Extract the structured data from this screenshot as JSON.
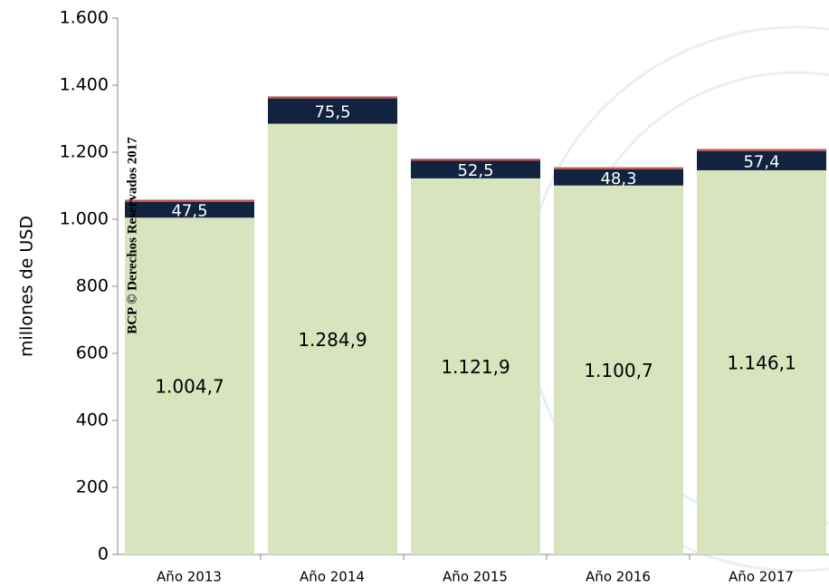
{
  "chart_data": {
    "type": "stacked_bar",
    "categories": [
      "Año 2013",
      "Año 2014",
      "Año 2015",
      "Año 2016",
      "Año 2017"
    ],
    "series": [
      {
        "color": "#d7e4bd",
        "values": [
          1004.7,
          1284.9,
          1121.9,
          1100.7,
          1146.1
        ],
        "value_labels": [
          "1.004,7",
          "1.284,9",
          "1.121,9",
          "1.100,7",
          "1.146,1"
        ]
      },
      {
        "color": "#12233f",
        "values": [
          47.5,
          75.5,
          52.5,
          48.3,
          57.4
        ],
        "value_labels": [
          "47,5",
          "75,5",
          "52,5",
          "48,3",
          "57,4"
        ]
      },
      {
        "color": "#c0504d",
        "values": [
          6,
          6,
          6,
          6,
          6
        ]
      }
    ],
    "y_label": "millones de  USD",
    "watermark": "BCP © Derechos Reservados 2017",
    "ylim": [
      0,
      1600
    ],
    "yticks": [
      0,
      200,
      400,
      600,
      800,
      {
        "value": 1000,
        "label": "1.000"
      },
      {
        "value": 1200,
        "label": "1.200"
      },
      {
        "value": 1400,
        "label": "1.400"
      },
      {
        "value": 1600,
        "label": "1.600"
      }
    ]
  }
}
